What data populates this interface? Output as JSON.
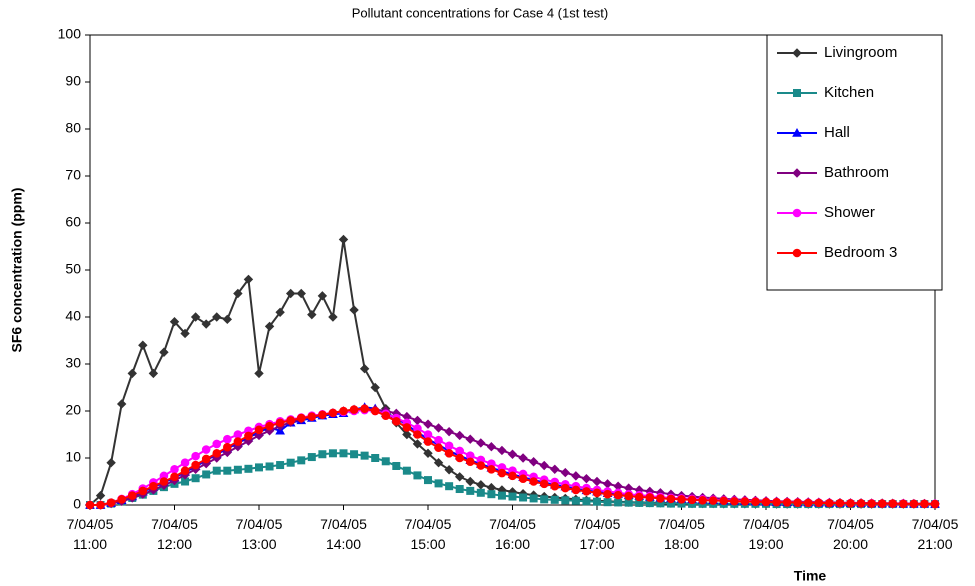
{
  "chart_data": {
    "type": "line",
    "title": "Pollutant concentrations for Case 4 (1st test)",
    "x_label": "Time",
    "y_label": "SF6 concentration (ppm)",
    "x": [
      11,
      11.125,
      11.25,
      11.375,
      11.5,
      11.625,
      11.75,
      11.875,
      12,
      12.125,
      12.25,
      12.375,
      12.5,
      12.625,
      12.75,
      12.875,
      13,
      13.125,
      13.25,
      13.375,
      13.5,
      13.625,
      13.75,
      13.875,
      14,
      14.125,
      14.25,
      14.375,
      14.5,
      14.625,
      14.75,
      14.875,
      15,
      15.125,
      15.25,
      15.375,
      15.5,
      15.625,
      15.75,
      15.875,
      16,
      16.125,
      16.25,
      16.375,
      16.5,
      16.625,
      16.75,
      16.875,
      17,
      17.125,
      17.25,
      17.375,
      17.5,
      17.625,
      17.75,
      17.875,
      18,
      18.125,
      18.25,
      18.375,
      18.5,
      18.625,
      18.75,
      18.875,
      19,
      19.125,
      19.25,
      19.375,
      19.5,
      19.625,
      19.75,
      19.875,
      20,
      20.125,
      20.25,
      20.375,
      20.5,
      20.625,
      20.75,
      20.875,
      21
    ],
    "xlim": [
      11,
      21
    ],
    "xticks": [
      {
        "value": 11,
        "label": "7/04/05 11:00"
      },
      {
        "value": 12,
        "label": "7/04/05 12:00"
      },
      {
        "value": 13,
        "label": "7/04/05 13:00"
      },
      {
        "value": 14,
        "label": "7/04/05 14:00"
      },
      {
        "value": 15,
        "label": "7/04/05 15:00"
      },
      {
        "value": 16,
        "label": "7/04/05 16:00"
      },
      {
        "value": 17,
        "label": "7/04/05 17:00"
      },
      {
        "value": 18,
        "label": "7/04/05 18:00"
      },
      {
        "value": 19,
        "label": "7/04/05 19:00"
      },
      {
        "value": 20,
        "label": "7/04/05 20:00"
      },
      {
        "value": 21,
        "label": "7/04/05 21:00"
      }
    ],
    "ylim": [
      0,
      100
    ],
    "yticks": [
      0,
      10,
      20,
      30,
      40,
      50,
      60,
      70,
      80,
      90,
      100
    ],
    "grid": false,
    "legend": "top-right",
    "series": [
      {
        "name": "Livingroom",
        "color": "#333333",
        "marker": "diamond",
        "values": [
          0,
          2,
          9,
          21.5,
          28,
          34,
          28,
          32.5,
          39,
          36.5,
          40,
          38.5,
          40,
          39.5,
          45,
          48,
          28,
          38,
          41,
          45,
          45,
          40.5,
          44.5,
          40,
          56.5,
          41.5,
          29,
          25,
          20.5,
          17.5,
          15,
          13,
          11,
          9,
          7.5,
          6,
          5,
          4.3,
          3.7,
          3.2,
          2.8,
          2.4,
          2.1,
          1.8,
          1.6,
          1.4,
          1.2,
          1,
          0.9,
          0.8,
          0.7,
          0.6,
          0.55,
          0.5,
          0.45,
          0.4,
          0.35,
          0.3,
          0.3,
          0.3,
          0.25,
          0.25,
          0.25,
          0.2,
          0.2,
          0.2,
          0.2,
          0.2,
          0.2,
          0.2,
          0.2,
          0.2,
          0.2,
          0.2,
          0.2,
          0.2,
          0.2,
          0.2,
          0.2,
          0.2,
          0.2
        ]
      },
      {
        "name": "Kitchen",
        "color": "#1a8a8a",
        "marker": "square",
        "values": [
          0,
          0,
          0.3,
          0.8,
          1.5,
          2.2,
          3,
          3.8,
          4.5,
          5,
          5.7,
          6.5,
          7.3,
          7.3,
          7.5,
          7.7,
          8,
          8.2,
          8.5,
          9,
          9.5,
          10.2,
          10.8,
          11,
          11,
          10.8,
          10.5,
          10,
          9.3,
          8.3,
          7.3,
          6.3,
          5.3,
          4.6,
          4,
          3.4,
          3,
          2.6,
          2.3,
          2,
          1.8,
          1.6,
          1.4,
          1.2,
          1.1,
          1,
          0.9,
          0.8,
          0.7,
          0.6,
          0.55,
          0.5,
          0.45,
          0.4,
          0.35,
          0.3,
          0.3,
          0.25,
          0.25,
          0.25,
          0.25,
          0.25,
          0.25,
          0.25,
          0.25,
          0.2,
          0.2,
          0.2,
          0.2,
          0.2,
          0.2,
          0.2,
          0.2,
          0.2,
          0.2,
          0.2,
          0.2,
          0.2,
          0.2,
          0.2,
          0.2
        ]
      },
      {
        "name": "Hall",
        "color": "#0000ff",
        "marker": "triangle",
        "values": [
          0,
          0,
          0.4,
          1,
          1.8,
          2.8,
          3.8,
          4.8,
          5.8,
          7,
          8.2,
          9.5,
          10.8,
          12,
          13.2,
          14.3,
          15.5,
          16.5,
          15.8,
          17.5,
          18,
          18.5,
          19,
          19.3,
          19.5,
          20.3,
          20.8,
          20.5,
          19.5,
          18.5,
          17,
          15.5,
          14,
          12.8,
          11.5,
          10.5,
          9.5,
          8.7,
          7.9,
          7.2,
          6.5,
          5.9,
          5.3,
          4.8,
          4.3,
          3.9,
          3.5,
          3.1,
          2.8,
          2.5,
          2.3,
          2.1,
          1.9,
          1.7,
          1.5,
          1.4,
          1.3,
          1.2,
          1.1,
          1,
          0.9,
          0.85,
          0.8,
          0.7,
          0.65,
          0.6,
          0.55,
          0.5,
          0.5,
          0.45,
          0.4,
          0.4,
          0.35,
          0.35,
          0.3,
          0.3,
          0.3,
          0.25,
          0.25,
          0.25,
          0.2
        ]
      },
      {
        "name": "Bathroom",
        "color": "#800080",
        "marker": "diamond",
        "values": [
          0,
          0,
          0.3,
          0.8,
          1.5,
          2.3,
          3.2,
          4.2,
          5.2,
          6.4,
          7.6,
          8.8,
          10,
          11.2,
          12.4,
          13.6,
          14.8,
          15.8,
          16.8,
          17.6,
          18.3,
          18.8,
          19.2,
          19.6,
          20,
          20.3,
          20.5,
          20.3,
          20,
          19.5,
          18.8,
          18,
          17.2,
          16.4,
          15.6,
          14.8,
          14,
          13.2,
          12.4,
          11.6,
          10.8,
          10,
          9.2,
          8.4,
          7.6,
          6.9,
          6.2,
          5.6,
          5,
          4.5,
          4,
          3.6,
          3.2,
          2.9,
          2.6,
          2.3,
          2,
          1.8,
          1.6,
          1.45,
          1.3,
          1.2,
          1.1,
          1,
          0.9,
          0.8,
          0.75,
          0.7,
          0.65,
          0.6,
          0.55,
          0.5,
          0.45,
          0.45,
          0.4,
          0.4,
          0.35,
          0.35,
          0.3,
          0.3,
          0.3
        ]
      },
      {
        "name": "Shower",
        "color": "#ff00ff",
        "marker": "circle",
        "values": [
          0,
          0,
          0.5,
          1.3,
          2.3,
          3.5,
          4.8,
          6.2,
          7.6,
          9,
          10.4,
          11.8,
          13,
          14,
          15,
          15.8,
          16.6,
          17.2,
          17.8,
          18.2,
          18.6,
          19,
          19.3,
          19.6,
          19.8,
          20,
          20.2,
          20,
          19.4,
          18.5,
          17.5,
          16.3,
          15,
          13.8,
          12.6,
          11.5,
          10.5,
          9.6,
          8.8,
          8,
          7.3,
          6.6,
          6,
          5.4,
          4.9,
          4.4,
          4,
          3.6,
          3.2,
          2.9,
          2.6,
          2.3,
          2.1,
          1.9,
          1.7,
          1.5,
          1.4,
          1.3,
          1.2,
          1.1,
          1,
          0.9,
          0.85,
          0.8,
          0.7,
          0.65,
          0.6,
          0.55,
          0.5,
          0.5,
          0.45,
          0.4,
          0.4,
          0.35,
          0.35,
          0.3,
          0.3,
          0.3,
          0.25,
          0.25,
          0.25
        ]
      },
      {
        "name": "Bedroom 3",
        "color": "#ff0000",
        "marker": "circle",
        "values": [
          0,
          0,
          0.5,
          1.2,
          2,
          3,
          4,
          5,
          6,
          7.3,
          8.5,
          9.8,
          11,
          12.3,
          13.5,
          14.7,
          16,
          16.8,
          17.5,
          18,
          18.5,
          18.8,
          19.2,
          19.6,
          20,
          20.3,
          20.5,
          20,
          19,
          17.8,
          16.5,
          15,
          13.5,
          12.2,
          11,
          10,
          9.2,
          8.4,
          7.6,
          6.8,
          6.2,
          5.6,
          5,
          4.5,
          4,
          3.6,
          3.2,
          2.9,
          2.6,
          2.3,
          2.1,
          1.9,
          1.7,
          1.6,
          1.4,
          1.3,
          1.2,
          1.1,
          1,
          0.95,
          0.9,
          0.8,
          0.75,
          0.7,
          0.65,
          0.6,
          0.55,
          0.5,
          0.45,
          0.45,
          0.4,
          0.4,
          0.35,
          0.35,
          0.3,
          0.3,
          0.3,
          0.25,
          0.25,
          0.25,
          0.2
        ]
      }
    ]
  }
}
